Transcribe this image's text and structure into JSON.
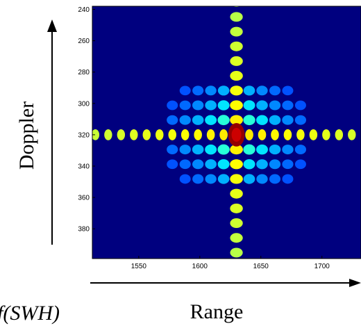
{
  "chart_data": {
    "type": "heatmap",
    "title": "",
    "xlabel": "Range",
    "ylabel": "Doppler",
    "x_ticks": [
      1550,
      1600,
      1650,
      1700
    ],
    "y_ticks": [
      240,
      260,
      280,
      300,
      320,
      340,
      360,
      380
    ],
    "xlim": [
      1512,
      1732
    ],
    "ylim": [
      238,
      399
    ],
    "peak": {
      "x": 1630,
      "y": 320
    },
    "range_sidelobe_spacing": 10.5,
    "doppler_sidelobe_spacing": 9.4,
    "colormap": "jet",
    "grid": false,
    "annotation": "f(SWH)"
  },
  "colors": {
    "background": "#00007f",
    "peak": "#cc0000",
    "arrow": "#000000"
  }
}
